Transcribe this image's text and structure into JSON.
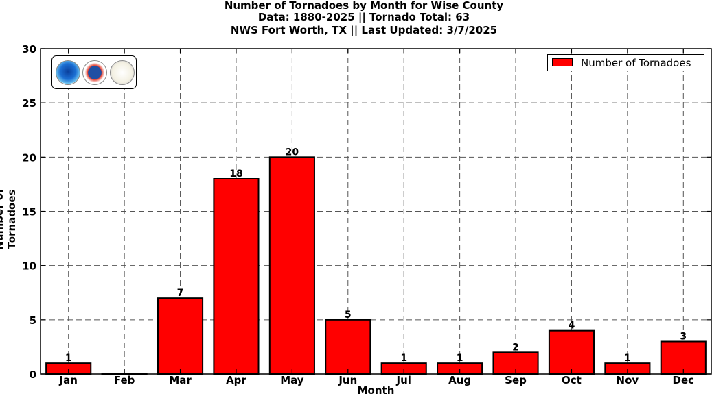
{
  "chart_data": {
    "type": "bar",
    "title_lines": [
      "Number of Tornadoes by Month for Wise County",
      "Data: 1880-2025 || Tornado Total: 63",
      "NWS Fort Worth, TX || Last Updated: 3/7/2025"
    ],
    "xlabel": "Month",
    "ylabel": "Number of Tornadoes",
    "categories": [
      "Jan",
      "Feb",
      "Mar",
      "Apr",
      "May",
      "Jun",
      "Jul",
      "Aug",
      "Sep",
      "Oct",
      "Nov",
      "Dec"
    ],
    "series": [
      {
        "name": "Number of Tornadoes",
        "values": [
          1,
          0,
          7,
          18,
          20,
          5,
          1,
          1,
          2,
          4,
          1,
          3
        ],
        "labels": [
          "1",
          "",
          "7",
          "18",
          "20",
          "5",
          "1",
          "1",
          "2",
          "4",
          "1",
          "3"
        ]
      }
    ],
    "ylim": [
      0,
      30
    ],
    "yticks": [
      0,
      5,
      10,
      15,
      20,
      25,
      30
    ],
    "grid": true,
    "grid_style": "dashed",
    "legend_position": "top-right",
    "bar_color": "#ff0000",
    "logos": [
      "noaa-logo",
      "nws-logo",
      "texas-logo"
    ]
  }
}
